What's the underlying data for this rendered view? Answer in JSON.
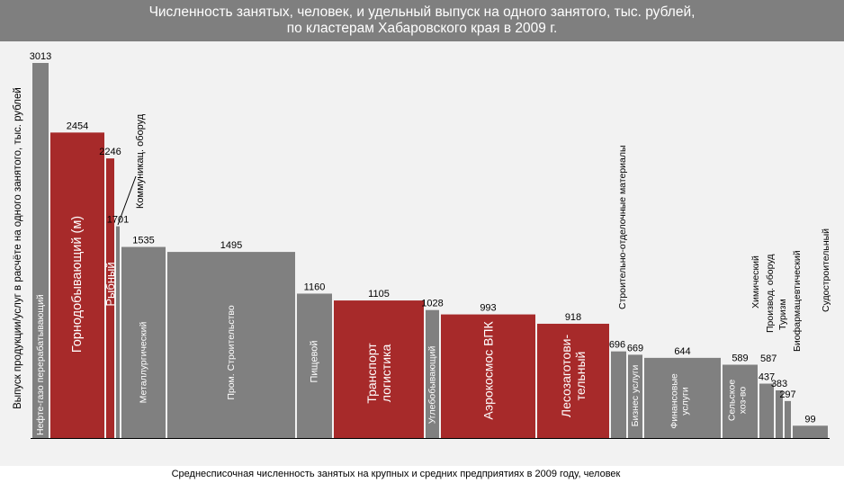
{
  "colors": {
    "header_bg": "#7f7f7f",
    "plot_bg": "#f2f2f2",
    "gray": "#808080",
    "red": "#a72a2a",
    "text_on_bar": "#ffffff",
    "label": "#000000"
  },
  "header": {
    "title_line1": "Численность занятых, человек, и удельный выпуск на одного занятого, тыс. рублей,",
    "title_line2": "по кластерам Хабаровского края в 2009 г."
  },
  "chart_data": {
    "type": "bar",
    "subtype": "variable-width",
    "title": "Численность занятых, человек, и удельный выпуск на одного занятого, тыс. рублей, по кластерам Хабаровского края в 2009 г.",
    "xlabel": "Среднесписочная численность занятых на крупных и средних предприятиях в 2009 году, человек",
    "ylabel": "Выпуск продукции/услуг в расчёте на одного занятого, тыс. рублей",
    "ylim": [
      0,
      3013
    ],
    "grid": false,
    "legend": "none",
    "bars": [
      {
        "label": "Нефте-газо перерабатывающий",
        "value": 3013,
        "value_label": "3013",
        "color": "gray"
      },
      {
        "label": "Горнодобывающий (м)",
        "value": 2454,
        "value_label": "2454",
        "color": "red"
      },
      {
        "label": "Рыбный",
        "value": 2246,
        "value_label": "2246",
        "color": "red"
      },
      {
        "label": "Коммуникац. оборуд",
        "value": 1701,
        "value_label": "1701",
        "color": "gray"
      },
      {
        "label": "Металлургический",
        "value": 1535,
        "value_label": "1535",
        "color": "gray"
      },
      {
        "label": "Пром. Строительство",
        "value": 1495,
        "value_label": "1495",
        "color": "gray"
      },
      {
        "label": "Пищевой",
        "value": 1160,
        "value_label": "1160",
        "color": "gray"
      },
      {
        "label": "Транспорт логистика",
        "value": 1105,
        "value_label": "1105",
        "color": "red"
      },
      {
        "label": "Углебобывающий",
        "value": 1028,
        "value_label": "1028",
        "color": "gray"
      },
      {
        "label": "Аэрокосмос ВПК",
        "value": 993,
        "value_label": "993",
        "color": "red"
      },
      {
        "label": "Лесозаготови-тельный",
        "value": 918,
        "value_label": "918",
        "color": "red"
      },
      {
        "label": "Строительно-отделочные материалы",
        "value": 696,
        "value_label": "696",
        "color": "gray"
      },
      {
        "label": "Бизнес услуги",
        "value": 669,
        "value_label": "669",
        "color": "gray"
      },
      {
        "label": "Финансовые услуги",
        "value": 644,
        "value_label": "644",
        "color": "gray"
      },
      {
        "label": "Сельское хоз-во",
        "value": 589,
        "value_label": "589",
        "color": "gray"
      },
      {
        "label": "Химический",
        "value": 587,
        "value_label": "587",
        "color": "gray"
      },
      {
        "label": "Производ. оборуд",
        "value": 437,
        "value_label": "437",
        "color": "gray"
      },
      {
        "label": "Туризм",
        "value": 383,
        "value_label": "383",
        "color": "gray"
      },
      {
        "label": "Биофармацевтический",
        "value": 297,
        "value_label": "297",
        "color": "gray"
      },
      {
        "label": "Судостроительный",
        "value": 99,
        "value_label": "99",
        "color": "gray"
      }
    ]
  }
}
